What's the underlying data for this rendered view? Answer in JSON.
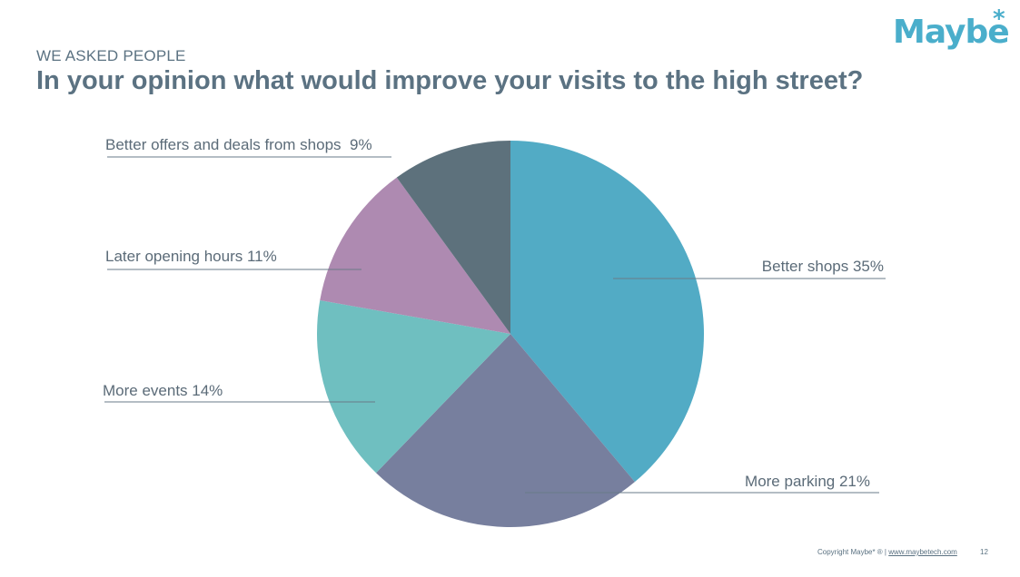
{
  "brand": {
    "name": "Maybe",
    "star": "*",
    "color": "#4aaecb"
  },
  "header": {
    "subtitle": "WE ASKED PEOPLE",
    "title": "In your opinion what would improve your visits to the high street?"
  },
  "chart_data": {
    "type": "pie",
    "title": "In your opinion what would improve your visits to the high street?",
    "slices": [
      {
        "label": "Better shops 35%",
        "category": "Better shops",
        "value": 35,
        "color": "#52abc5"
      },
      {
        "label": "More parking 21%",
        "category": "More parking",
        "value": 21,
        "color": "#777f9e"
      },
      {
        "label": "More events 14%",
        "category": "More events",
        "value": 14,
        "color": "#6fbfc0"
      },
      {
        "label": "Later opening hours 11%",
        "category": "Later opening hours",
        "value": 11,
        "color": "#ae8ab1"
      },
      {
        "label": "Better offers and deals from shops  9%",
        "category": "Better offers and deals from shops",
        "value": 9,
        "color": "#5d717c"
      }
    ],
    "start_angle_deg": 0,
    "direction": "clockwise",
    "label_color": "#5b6b78",
    "leader_color": "#6a7b88"
  },
  "footer": {
    "copyright": "Copyright Maybe* ® | ",
    "url": "www.maybetech.com",
    "page_number": "12"
  }
}
